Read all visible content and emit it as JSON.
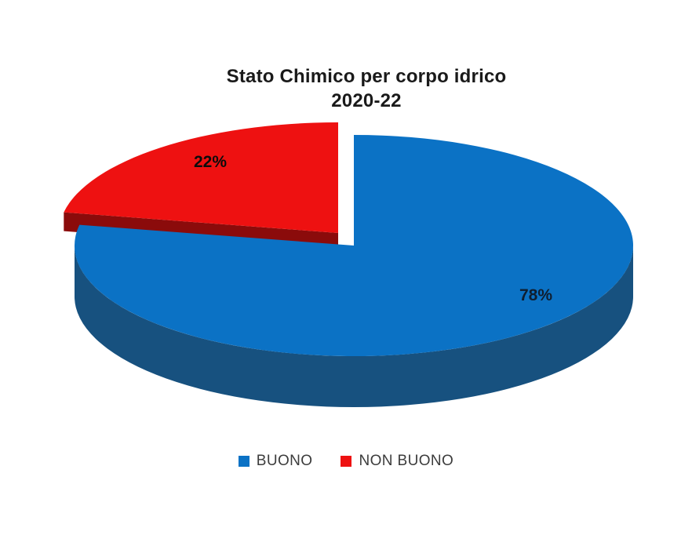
{
  "title": {
    "line1": "Stato Chimico per corpo idrico",
    "line2": "2020-22"
  },
  "chart_data": {
    "type": "pie",
    "style": "3d-exploded",
    "title": "Stato Chimico per corpo idrico 2020-22",
    "categories": [
      "BUONO",
      "NON BUONO"
    ],
    "values": [
      78,
      22
    ],
    "unit": "%",
    "data_labels": [
      "78%",
      "22%"
    ],
    "colors": [
      "#0b72c5",
      "#ee1111"
    ],
    "side_colors": [
      "#17517f",
      "#8b0b0b"
    ],
    "exploded_slice": "NON BUONO",
    "legend_position": "bottom",
    "start_angle": "top, clockwise"
  },
  "legend": {
    "items": [
      {
        "label": "BUONO"
      },
      {
        "label": "NON BUONO"
      }
    ]
  }
}
